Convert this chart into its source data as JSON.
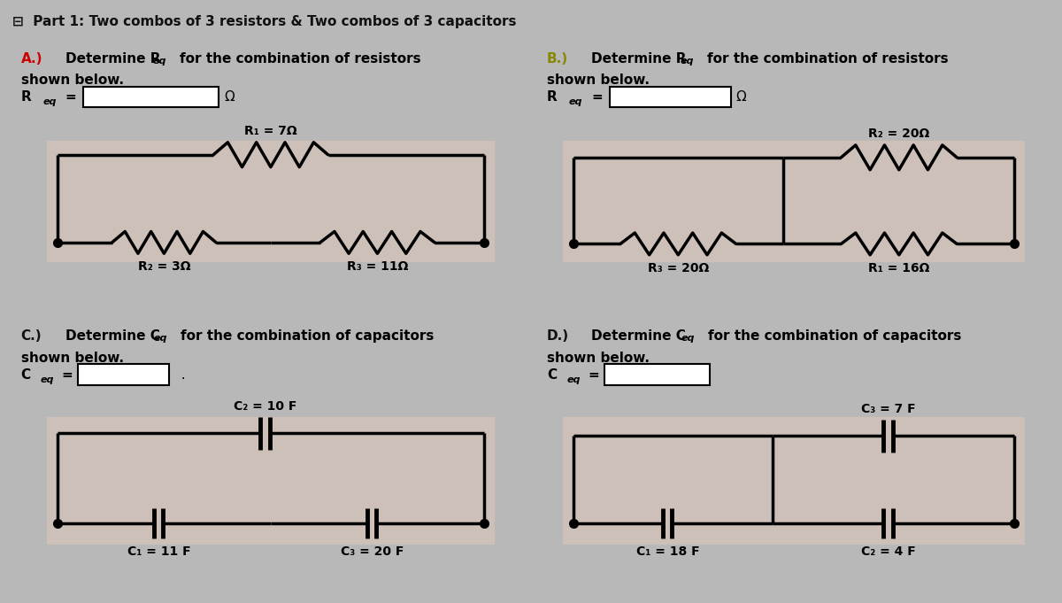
{
  "title": "Part 1: Two combos of 3 resistors & Two combos of 3 capacitors",
  "bg_outer": "#b8b8b8",
  "bg_panel_top": "#d8c8c0",
  "bg_panel_circuit": "#d0c8c0",
  "bg_white": "#ffffff",
  "header_bg": "#c8c8c8",
  "resistor_A": {
    "R1": "R₁ = 7Ω",
    "R2": "R₂ = 3Ω",
    "R3": "R₃ = 11Ω"
  },
  "resistor_B": {
    "R1": "R₁ = 16Ω",
    "R2": "R₂ = 20Ω",
    "R3": "R₃ = 20Ω"
  },
  "capacitor_C": {
    "C1": "C₁ = 11 F",
    "C2": "C₂ = 10 F",
    "C3": "C₃ = 20 F"
  },
  "capacitor_D": {
    "C1": "C₁ = 18 F",
    "C2": "C₂ = 4 F",
    "C3": "C₃ = 7 F"
  }
}
